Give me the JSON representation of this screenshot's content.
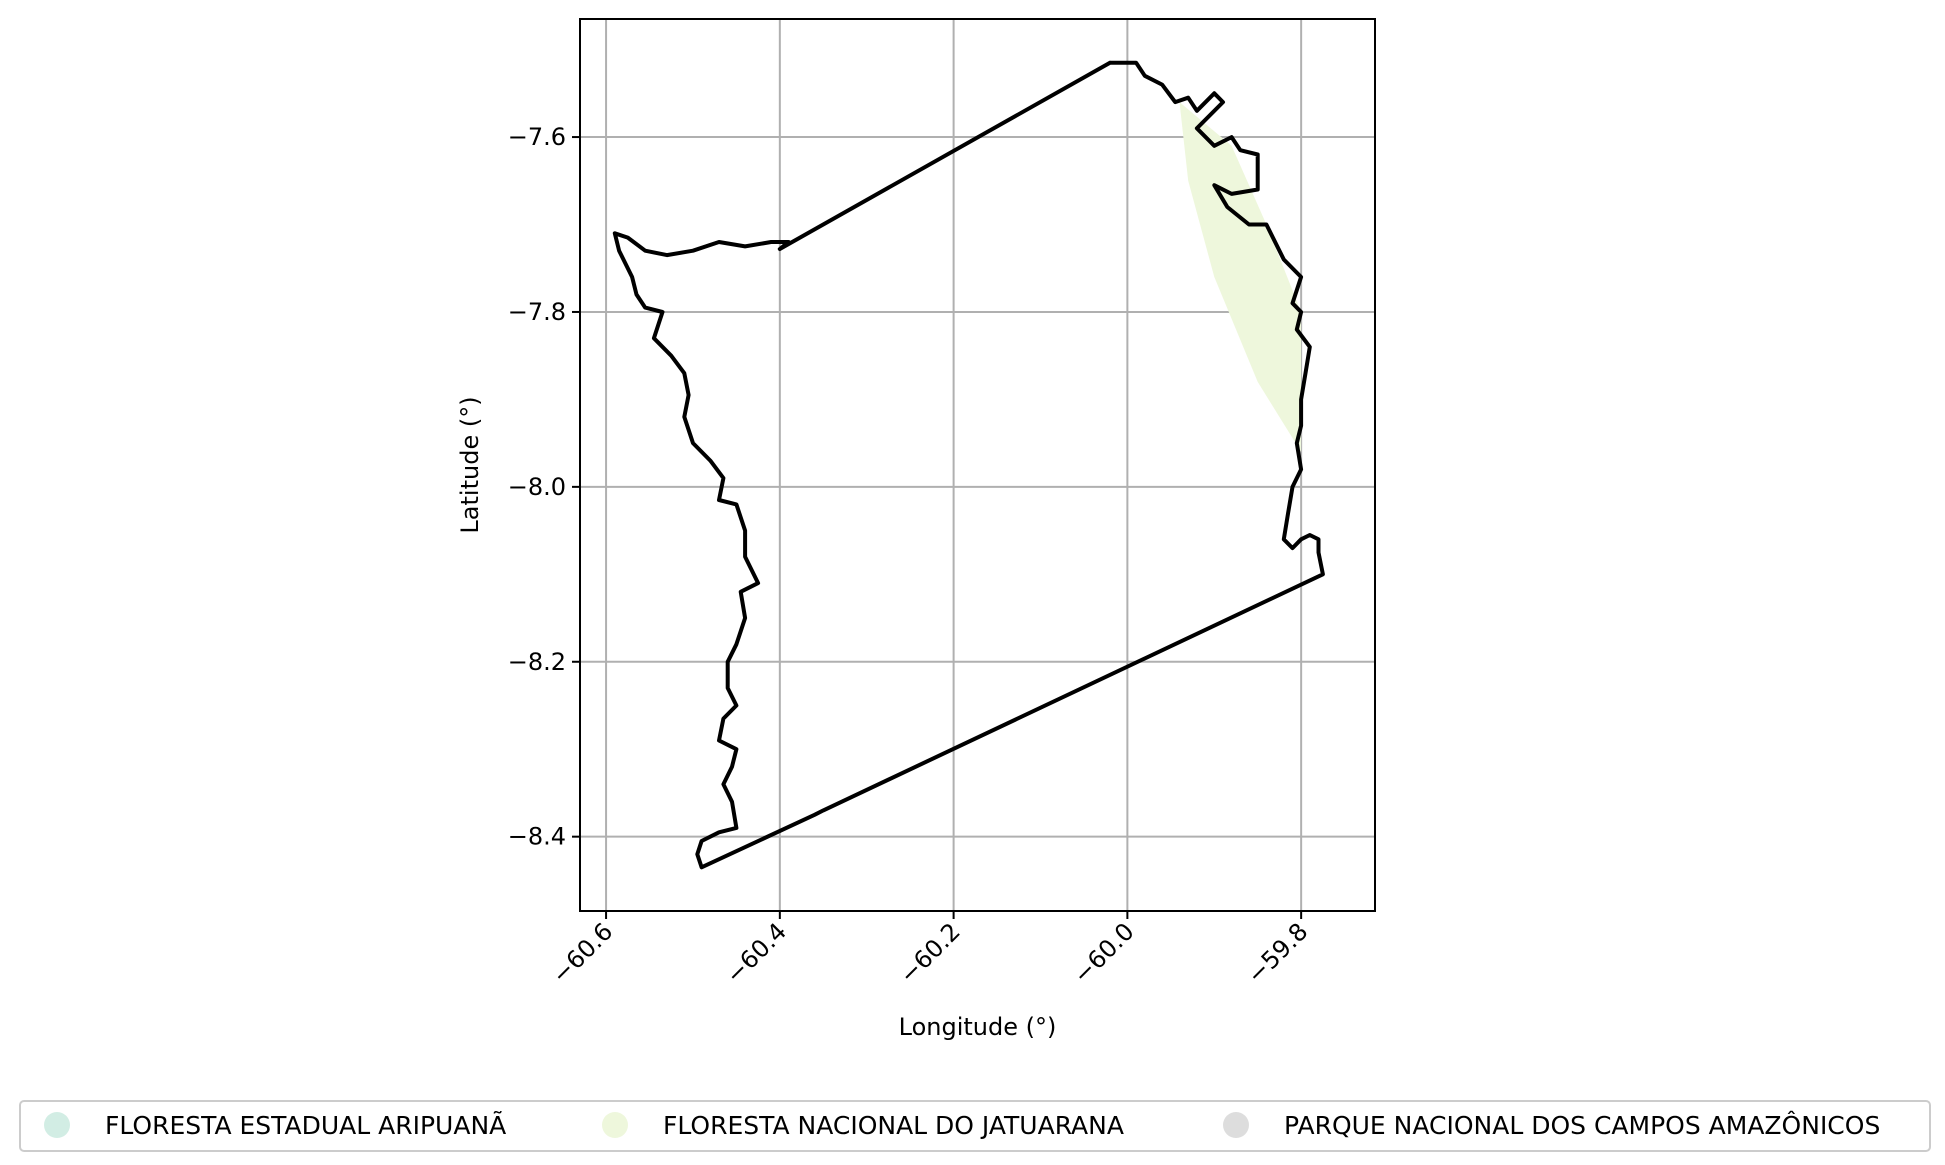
{
  "chart_data": {
    "type": "map",
    "xlabel": "Longitude (°)",
    "ylabel": "Latitude (°)",
    "xlim": [
      -60.63,
      -59.715
    ],
    "ylim": [
      -8.485,
      -7.465
    ],
    "x_ticks": [
      -60.6,
      -60.4,
      -60.2,
      -60.0,
      -59.8
    ],
    "x_tick_labels": [
      "−60.6",
      "−60.4",
      "−60.2",
      "−60.0",
      "−59.8"
    ],
    "y_ticks": [
      -7.6,
      -7.8,
      -8.0,
      -8.2,
      -8.4
    ],
    "y_tick_labels": [
      "−7.6",
      "−7.8",
      "−8.0",
      "−8.2",
      "−8.4"
    ],
    "grid": true,
    "legend_position": "bottom",
    "legend": [
      {
        "label": "FLORESTA ESTADUAL ARIPUANÃ",
        "color": "#d2ede4"
      },
      {
        "label": "FLORESTA NACIONAL DO JATUARANA",
        "color": "#eef7dc"
      },
      {
        "label": "PARQUE NACIONAL DOS CAMPOS AMAZÔNICOS",
        "color": "#dddddd"
      }
    ],
    "boundary_polygon": [
      [
        -60.02,
        -7.515
      ],
      [
        -59.99,
        -7.515
      ],
      [
        -59.98,
        -7.53
      ],
      [
        -59.96,
        -7.54
      ],
      [
        -59.945,
        -7.56
      ],
      [
        -59.93,
        -7.555
      ],
      [
        -59.92,
        -7.57
      ],
      [
        -59.9,
        -7.55
      ],
      [
        -59.89,
        -7.56
      ],
      [
        -59.92,
        -7.59
      ],
      [
        -59.9,
        -7.61
      ],
      [
        -59.88,
        -7.6
      ],
      [
        -59.87,
        -7.615
      ],
      [
        -59.85,
        -7.62
      ],
      [
        -59.85,
        -7.66
      ],
      [
        -59.88,
        -7.665
      ],
      [
        -59.9,
        -7.655
      ],
      [
        -59.885,
        -7.68
      ],
      [
        -59.86,
        -7.7
      ],
      [
        -59.84,
        -7.7
      ],
      [
        -59.83,
        -7.72
      ],
      [
        -59.82,
        -7.74
      ],
      [
        -59.8,
        -7.76
      ],
      [
        -59.81,
        -7.79
      ],
      [
        -59.8,
        -7.8
      ],
      [
        -59.805,
        -7.82
      ],
      [
        -59.79,
        -7.84
      ],
      [
        -59.795,
        -7.87
      ],
      [
        -59.8,
        -7.9
      ],
      [
        -59.8,
        -7.93
      ],
      [
        -59.805,
        -7.95
      ],
      [
        -59.8,
        -7.98
      ],
      [
        -59.81,
        -8.0
      ],
      [
        -59.815,
        -8.03
      ],
      [
        -59.82,
        -8.06
      ],
      [
        -59.81,
        -8.07
      ],
      [
        -59.8,
        -8.06
      ],
      [
        -59.79,
        -8.055
      ],
      [
        -59.78,
        -8.06
      ],
      [
        -59.78,
        -8.075
      ],
      [
        -59.775,
        -8.1
      ],
      [
        -60.35,
        -8.37
      ],
      [
        -60.36,
        -8.375
      ],
      [
        -60.49,
        -8.435
      ],
      [
        -60.495,
        -8.42
      ],
      [
        -60.49,
        -8.405
      ],
      [
        -60.47,
        -8.395
      ],
      [
        -60.45,
        -8.39
      ],
      [
        -60.455,
        -8.36
      ],
      [
        -60.465,
        -8.34
      ],
      [
        -60.455,
        -8.32
      ],
      [
        -60.45,
        -8.3
      ],
      [
        -60.47,
        -8.29
      ],
      [
        -60.465,
        -8.265
      ],
      [
        -60.45,
        -8.25
      ],
      [
        -60.46,
        -8.23
      ],
      [
        -60.46,
        -8.2
      ],
      [
        -60.45,
        -8.18
      ],
      [
        -60.44,
        -8.15
      ],
      [
        -60.445,
        -8.12
      ],
      [
        -60.425,
        -8.11
      ],
      [
        -60.44,
        -8.08
      ],
      [
        -60.44,
        -8.05
      ],
      [
        -60.45,
        -8.02
      ],
      [
        -60.47,
        -8.015
      ],
      [
        -60.465,
        -7.99
      ],
      [
        -60.48,
        -7.97
      ],
      [
        -60.5,
        -7.95
      ],
      [
        -60.51,
        -7.92
      ],
      [
        -60.505,
        -7.895
      ],
      [
        -60.51,
        -7.87
      ],
      [
        -60.525,
        -7.85
      ],
      [
        -60.545,
        -7.83
      ],
      [
        -60.535,
        -7.8
      ],
      [
        -60.555,
        -7.795
      ],
      [
        -60.565,
        -7.78
      ],
      [
        -60.57,
        -7.76
      ],
      [
        -60.585,
        -7.73
      ],
      [
        -60.59,
        -7.71
      ],
      [
        -60.575,
        -7.715
      ],
      [
        -60.555,
        -7.73
      ],
      [
        -60.53,
        -7.735
      ],
      [
        -60.5,
        -7.73
      ],
      [
        -60.47,
        -7.72
      ],
      [
        -60.44,
        -7.725
      ],
      [
        -60.41,
        -7.72
      ],
      [
        -60.39,
        -7.72
      ],
      [
        -60.4,
        -7.728
      ],
      [
        -60.02,
        -7.515
      ]
    ],
    "jatuarana_fill_polygon": [
      [
        -59.94,
        -7.56
      ],
      [
        -59.88,
        -7.61
      ],
      [
        -59.84,
        -7.7
      ],
      [
        -59.8,
        -7.8
      ],
      [
        -59.8,
        -7.96
      ],
      [
        -59.85,
        -7.88
      ],
      [
        -59.9,
        -7.76
      ],
      [
        -59.93,
        -7.65
      ]
    ]
  }
}
